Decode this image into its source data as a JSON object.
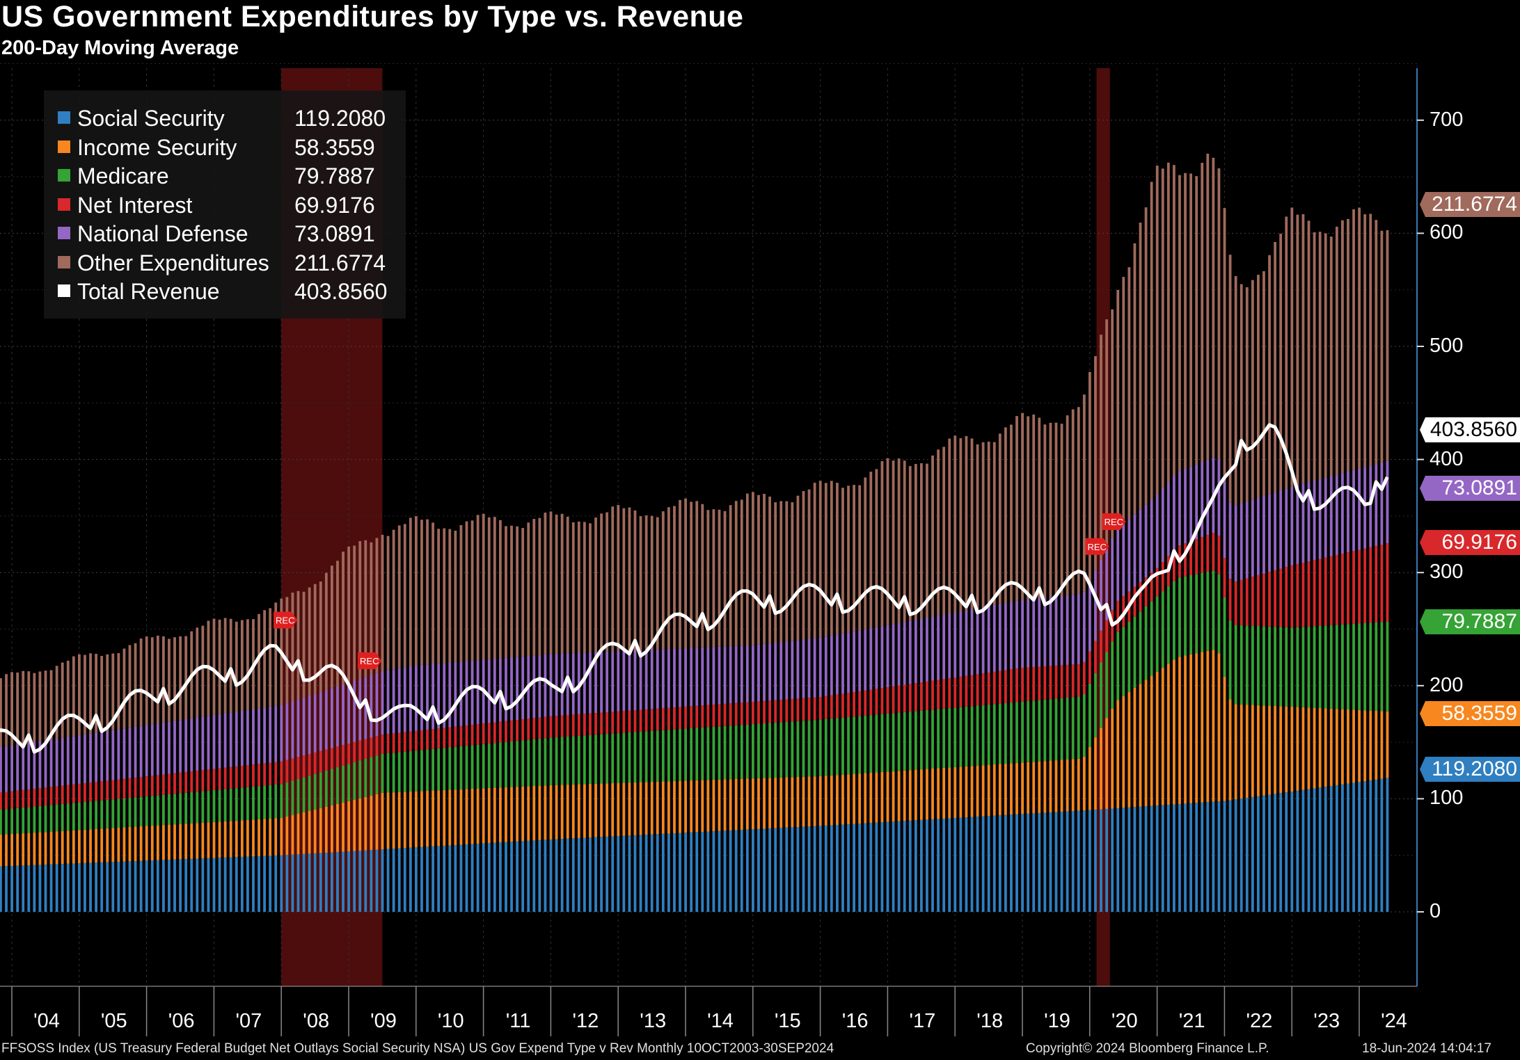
{
  "chart_data": {
    "type": "bar",
    "stacked": true,
    "title": "US Government Expenditures by Type vs. Revenue",
    "subtitle": "200-Day Moving Average",
    "frequency": "Monthly",
    "x_start": "2003-10",
    "x_end": "2024-06",
    "ylim": [
      -50,
      750
    ],
    "y_ticks": [
      0,
      100,
      200,
      300,
      400,
      500,
      600,
      700
    ],
    "x_tick_labels": [
      "'04",
      "'05",
      "'06",
      "'07",
      "'08",
      "'09",
      "'10",
      "'11",
      "'12",
      "'13",
      "'14",
      "'15",
      "'16",
      "'17",
      "'18",
      "'19",
      "'20",
      "'21",
      "'22",
      "'23",
      "'24"
    ],
    "grid": true,
    "legend_position": "top-left",
    "recessions": [
      {
        "start": 2008.0,
        "end": 2009.5,
        "label": "REC"
      },
      {
        "start": 2020.1,
        "end": 2020.3,
        "label": "REC"
      }
    ],
    "series": [
      {
        "name": "Social Security",
        "last": "119.2080",
        "color": "#2f7fc1",
        "kind": "bar",
        "anchors": [
          [
            2003.75,
            40
          ],
          [
            2008,
            50
          ],
          [
            2012,
            64
          ],
          [
            2016,
            76
          ],
          [
            2020,
            90
          ],
          [
            2022,
            98
          ],
          [
            2024.5,
            119
          ]
        ]
      },
      {
        "name": "Income Security",
        "last": "58.3559",
        "color": "#f7871e",
        "kind": "bar",
        "anchors": [
          [
            2003.75,
            28
          ],
          [
            2008,
            33
          ],
          [
            2009.5,
            50
          ],
          [
            2012,
            48
          ],
          [
            2016,
            44
          ],
          [
            2019.9,
            46
          ],
          [
            2020.4,
            95
          ],
          [
            2021.3,
            130
          ],
          [
            2021.9,
            135
          ],
          [
            2022.1,
            85
          ],
          [
            2023,
            75
          ],
          [
            2024.5,
            58
          ]
        ]
      },
      {
        "name": "Medicare",
        "last": "79.7887",
        "color": "#35a335",
        "kind": "bar",
        "anchors": [
          [
            2003.75,
            22
          ],
          [
            2008,
            30
          ],
          [
            2012,
            42
          ],
          [
            2016,
            50
          ],
          [
            2019.9,
            55
          ],
          [
            2020.4,
            60
          ],
          [
            2021.3,
            70
          ],
          [
            2023,
            70
          ],
          [
            2024.5,
            80
          ]
        ]
      },
      {
        "name": "Net Interest",
        "last": "69.9176",
        "color": "#d8282b",
        "kind": "bar",
        "anchors": [
          [
            2003.75,
            15
          ],
          [
            2008,
            20
          ],
          [
            2009.5,
            17
          ],
          [
            2012,
            19
          ],
          [
            2016,
            20
          ],
          [
            2019,
            30
          ],
          [
            2020.3,
            28
          ],
          [
            2021,
            25
          ],
          [
            2022,
            35
          ],
          [
            2023,
            55
          ],
          [
            2024.5,
            70
          ]
        ]
      },
      {
        "name": "National Defense",
        "last": "73.0891",
        "color": "#9467c4",
        "kind": "bar",
        "anchors": [
          [
            2003.75,
            40
          ],
          [
            2008,
            50
          ],
          [
            2010,
            58
          ],
          [
            2012,
            55
          ],
          [
            2015,
            50
          ],
          [
            2019,
            60
          ],
          [
            2021,
            65
          ],
          [
            2024.5,
            73
          ]
        ]
      },
      {
        "name": "Other Expenditures",
        "last": "211.6774",
        "color": "#a06a5c",
        "kind": "bar",
        "anchors": [
          [
            2003.75,
            60
          ],
          [
            2007.9,
            87
          ],
          [
            2009.5,
            127
          ],
          [
            2012,
            120
          ],
          [
            2016,
            132
          ],
          [
            2019.9,
            165
          ],
          [
            2020.5,
            230
          ],
          [
            2021,
            277
          ],
          [
            2021.8,
            270
          ],
          [
            2022.2,
            191
          ],
          [
            2023,
            235
          ],
          [
            2024.5,
            212
          ]
        ]
      },
      {
        "name": "Total Revenue",
        "last": "403.8560",
        "color": "#ffffff",
        "kind": "line",
        "anchors": [
          [
            2003.75,
            148
          ],
          [
            2004.5,
            155
          ],
          [
            2005.5,
            175
          ],
          [
            2006.5,
            200
          ],
          [
            2007.5,
            215
          ],
          [
            2007.9,
            225
          ],
          [
            2008.7,
            210
          ],
          [
            2009.2,
            185
          ],
          [
            2009.8,
            170
          ],
          [
            2011,
            190
          ],
          [
            2012,
            195
          ],
          [
            2013,
            230
          ],
          [
            2014,
            255
          ],
          [
            2015,
            275
          ],
          [
            2016,
            278
          ],
          [
            2017,
            275
          ],
          [
            2018,
            275
          ],
          [
            2019,
            280
          ],
          [
            2019.9,
            290
          ],
          [
            2020.3,
            265
          ],
          [
            2020.8,
            275
          ],
          [
            2021.3,
            320
          ],
          [
            2021.8,
            350
          ],
          [
            2022.3,
            420
          ],
          [
            2022.7,
            425
          ],
          [
            2023.1,
            370
          ],
          [
            2023.7,
            365
          ],
          [
            2024.1,
            360
          ],
          [
            2024.5,
            404
          ]
        ]
      }
    ]
  },
  "footer": {
    "source": "FFSOSS Index (US Treasury Federal Budget Net Outlays Social Security NSA) US Gov Expend Type v Rev  Monthly 10OCT2003-30SEP2024",
    "copyright": "Copyright© 2024 Bloomberg Finance L.P.",
    "timestamp": "18-Jun-2024 14:04:17"
  }
}
